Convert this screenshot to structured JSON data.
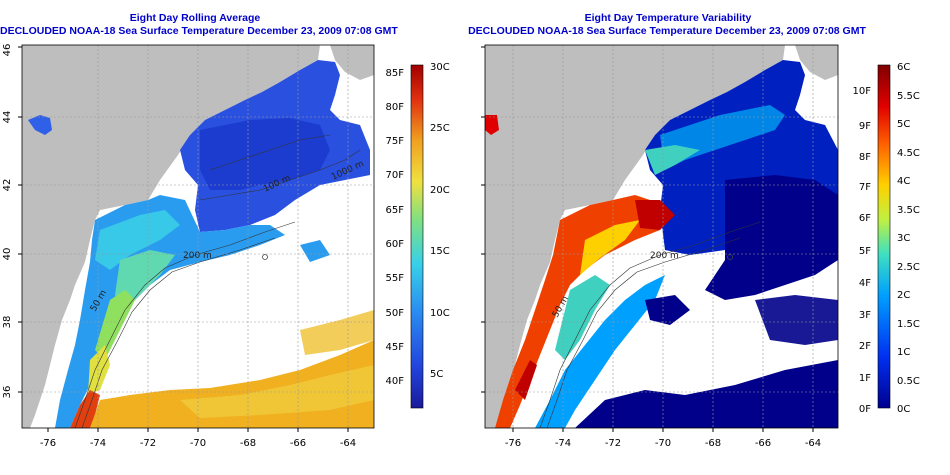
{
  "panels": [
    {
      "title": "Eight Day Rolling Average",
      "subtitle": "DECLOUDED NOAA-18 Sea Surface Temperature December 23, 2009 07:08 GMT",
      "x_ticks": [
        "-76",
        "-74",
        "-72",
        "-70",
        "-68",
        "-66",
        "-64"
      ],
      "y_ticks": [
        "36",
        "38",
        "40",
        "42",
        "44",
        "46"
      ],
      "contour_labels": [
        "50 m",
        "200 m",
        "1000 m",
        "100 m"
      ],
      "colorbar_f_labels": [
        "85F",
        "80F",
        "75F",
        "70F",
        "65F",
        "60F",
        "55F",
        "50F",
        "45F",
        "40F"
      ],
      "colorbar_c_labels": [
        "30C",
        "25C",
        "20C",
        "15C",
        "10C",
        "5C"
      ]
    },
    {
      "title": "Eight Day Temperature Variability",
      "subtitle": "DECLOUDED NOAA-18 Sea Surface Temperature December 23, 2009 07:08 GMT",
      "x_ticks": [
        "-76",
        "-74",
        "-72",
        "-70",
        "-68",
        "-66",
        "-64"
      ],
      "y_ticks": [
        "36",
        "38",
        "40",
        "42",
        "44",
        "46"
      ],
      "contour_labels": [
        "50 m",
        "200 m"
      ],
      "colorbar_f_labels": [
        "10F",
        "9F",
        "8F",
        "7F",
        "6F",
        "5F",
        "4F",
        "3F",
        "2F",
        "1F",
        "0F"
      ],
      "colorbar_c_labels": [
        "6C",
        "5.5C",
        "5C",
        "4.5C",
        "4C",
        "3.5C",
        "3C",
        "2.5C",
        "2C",
        "1.5C",
        "1C",
        "0.5C",
        "0C"
      ]
    }
  ],
  "colors": {
    "land": "#bebebe",
    "title_text": "#0000cc",
    "avg_scale": [
      "#1a1a9a",
      "#2244dd",
      "#2a8cf0",
      "#38d0e8",
      "#80e080",
      "#f0e040",
      "#f0a020",
      "#e03010",
      "#a00000"
    ],
    "var_scale": [
      "#000090",
      "#0030f0",
      "#00a0ff",
      "#40e0c0",
      "#c0f040",
      "#ffd000",
      "#ff6000",
      "#e00000",
      "#800000"
    ]
  }
}
